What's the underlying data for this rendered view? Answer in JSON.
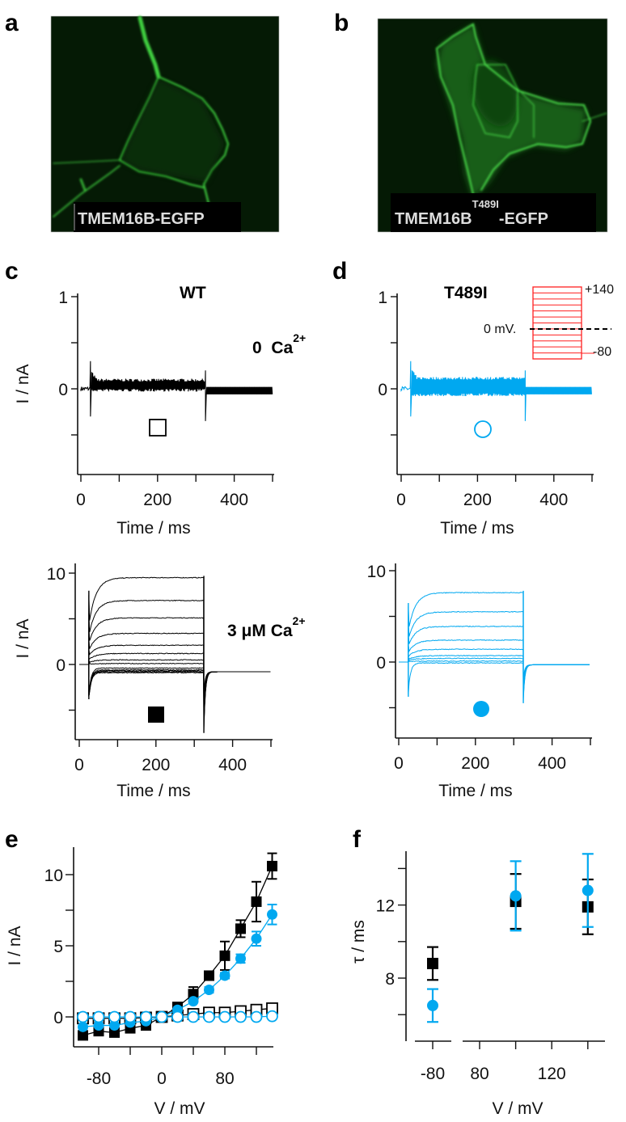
{
  "panel_letters": {
    "a": "a",
    "b": "b",
    "c": "c",
    "d": "d",
    "e": "e",
    "f": "f"
  },
  "images": {
    "a": {
      "label": "TMEM16B-EGFP"
    },
    "b": {
      "label_main": "TMEM16B",
      "label_sup": "T489I",
      "label_tail": "-EGFP"
    }
  },
  "titles": {
    "wt": "WT",
    "mut": "T489I"
  },
  "conditions": {
    "zero_ca": {
      "main": "0  Ca",
      "sup": "2+"
    },
    "three_um_ca": {
      "main": "3 μM Ca",
      "sup": "2+"
    }
  },
  "inset": {
    "top": "+140",
    "zero": "0 mV.",
    "bottom": "-80",
    "color": "#ff2020"
  },
  "colors": {
    "wt": "#000000",
    "mut": "#00a8f0"
  },
  "chart_data": [
    {
      "id": "c_top",
      "type": "line",
      "title": "WT 0 Ca2+",
      "xlabel": "Time / ms",
      "ylabel": "I / nA",
      "xlim": [
        0,
        500
      ],
      "ylim": [
        -1,
        1
      ],
      "xticks": [
        0,
        100,
        200,
        300,
        400,
        500
      ],
      "xtick_labels": [
        "0",
        "",
        "200",
        "",
        "400",
        ""
      ],
      "yticks": [
        1,
        0.5,
        0,
        -0.5
      ],
      "ytick_labels": [
        "1",
        "",
        "0",
        ""
      ],
      "pulse_ms": [
        25,
        325
      ],
      "steady_levels": [
        0.08,
        0.0
      ],
      "marker": "open-square"
    },
    {
      "id": "d_top",
      "type": "line",
      "title": "T489I 0 Ca2+",
      "xlabel": "Time / ms",
      "ylabel": "",
      "xlim": [
        0,
        500
      ],
      "ylim": [
        -1,
        1
      ],
      "xticks": [
        0,
        100,
        200,
        300,
        400,
        500
      ],
      "xtick_labels": [
        "0",
        "",
        "200",
        "",
        "400",
        ""
      ],
      "yticks": [
        1,
        0.5,
        0,
        -0.5
      ],
      "ytick_labels": [
        "1",
        "",
        "0",
        ""
      ],
      "pulse_ms": [
        25,
        325
      ],
      "steady_levels": [
        0.1,
        -0.05
      ],
      "marker": "open-circle"
    },
    {
      "id": "c_bot",
      "type": "line",
      "title": "WT 3 μM Ca2+",
      "xlabel": "Time / ms",
      "ylabel": "I / nA",
      "xlim": [
        0,
        500
      ],
      "ylim": [
        -8,
        12
      ],
      "xticks": [
        0,
        100,
        200,
        300,
        400,
        500
      ],
      "xtick_labels": [
        "0",
        "",
        "200",
        "",
        "400",
        ""
      ],
      "yticks": [
        10,
        5,
        0,
        -5
      ],
      "ytick_labels": [
        "10",
        "",
        "0",
        ""
      ],
      "pulse_ms": [
        25,
        325
      ],
      "steady_levels": [
        9.5,
        7.0,
        5.1,
        3.4,
        2.1,
        1.2,
        0.5,
        0.1,
        -0.4,
        -0.6,
        -0.7,
        -0.8,
        -0.9
      ],
      "tail_nA": -7.5,
      "holding_nA": -0.8,
      "marker": "filled-square"
    },
    {
      "id": "d_bot",
      "type": "line",
      "title": "T489I 3 μM Ca2+",
      "xlabel": "Time / ms",
      "ylabel": "",
      "xlim": [
        0,
        500
      ],
      "ylim": [
        -8,
        12
      ],
      "xticks": [
        0,
        100,
        200,
        300,
        400,
        500
      ],
      "xtick_labels": [
        "0",
        "",
        "200",
        "",
        "400",
        ""
      ],
      "yticks": [
        10,
        5,
        0,
        -5
      ],
      "ytick_labels": [
        "10",
        "",
        "0",
        ""
      ],
      "pulse_ms": [
        25,
        325
      ],
      "steady_levels": [
        7.6,
        5.5,
        3.9,
        2.4,
        1.4,
        0.7,
        0.4,
        0.1,
        -0.1
      ],
      "tail_nA": -4.5,
      "holding_nA": -0.3,
      "marker": "filled-circle"
    },
    {
      "id": "e",
      "type": "scatter",
      "xlabel": "V / mV",
      "ylabel": "I / nA",
      "xlim": [
        -100,
        140
      ],
      "ylim": [
        -2,
        12
      ],
      "xticks": [
        -80,
        -40,
        0,
        40,
        80,
        120
      ],
      "xtick_labels": [
        "-80",
        "",
        "0",
        "",
        "80",
        ""
      ],
      "yticks": [
        10,
        7.5,
        5,
        2.5,
        0
      ],
      "ytick_labels": [
        "10",
        "",
        "5",
        "",
        "0"
      ],
      "x": [
        -100,
        -80,
        -60,
        -40,
        -20,
        0,
        20,
        40,
        60,
        80,
        100,
        120,
        140
      ],
      "series": [
        {
          "name": "WT 0 Ca2+",
          "marker": "open-square",
          "color": "#000000",
          "values": [
            -0.1,
            -0.1,
            -0.1,
            -0.1,
            -0.05,
            0,
            0.1,
            0.2,
            0.3,
            0.3,
            0.4,
            0.5,
            0.6
          ],
          "errors": [
            0.1,
            0.1,
            0.1,
            0.1,
            0.1,
            0.1,
            0.1,
            0.1,
            0.1,
            0.1,
            0.1,
            0.1,
            0.1
          ]
        },
        {
          "name": "WT 3 μM Ca2+",
          "marker": "filled-square",
          "color": "#000000",
          "values": [
            -1.3,
            -1.0,
            -1.1,
            -0.8,
            -0.6,
            0,
            0.7,
            1.6,
            2.9,
            4.3,
            6.2,
            8.1,
            10.6
          ],
          "errors": [
            0.2,
            0.1,
            0.1,
            0.1,
            0.1,
            0.1,
            0.1,
            0.5,
            0.2,
            1.0,
            0.6,
            1.4,
            0.9
          ]
        },
        {
          "name": "T489I 3 μM Ca2+",
          "marker": "filled-circle",
          "color": "#00a8f0",
          "values": [
            -0.7,
            -0.6,
            -0.6,
            -0.4,
            -0.3,
            0,
            0.5,
            1.1,
            1.9,
            2.9,
            4.1,
            5.5,
            7.2
          ],
          "errors": [
            0.1,
            0.1,
            0.1,
            0.1,
            0.1,
            0.1,
            0.1,
            0.1,
            0.2,
            0.2,
            0.3,
            0.5,
            0.7
          ]
        },
        {
          "name": "T489I 0 Ca2+",
          "marker": "open-circle",
          "color": "#00a8f0",
          "values": [
            0,
            0,
            0,
            0,
            0,
            0,
            0,
            0,
            0,
            0,
            0,
            0,
            0.05
          ],
          "errors": [
            0.05,
            0.05,
            0.05,
            0.05,
            0.05,
            0.05,
            0.05,
            0.05,
            0.05,
            0.05,
            0.05,
            0.05,
            0.05
          ]
        }
      ]
    },
    {
      "id": "f",
      "type": "scatter",
      "xlabel": "V / mV",
      "ylabel": "τ / ms",
      "xlim": [
        -80,
        140
      ],
      "ylim": [
        5,
        15
      ],
      "xticks": [
        -80,
        80,
        100,
        120,
        140
      ],
      "xtick_labels": [
        "-80",
        "80",
        "",
        "120",
        ""
      ],
      "yticks": [
        14,
        12,
        10,
        8,
        6
      ],
      "ytick_labels": [
        "",
        "12",
        "",
        "8",
        ""
      ],
      "x": [
        -80,
        100,
        140
      ],
      "series": [
        {
          "name": "WT",
          "marker": "filled-square",
          "color": "#000000",
          "values": [
            8.8,
            12.2,
            11.9
          ],
          "errors": [
            0.9,
            1.5,
            1.5
          ]
        },
        {
          "name": "T489I",
          "marker": "filled-circle",
          "color": "#00a8f0",
          "values": [
            6.5,
            12.5,
            12.8
          ],
          "errors": [
            0.9,
            1.9,
            2.0
          ]
        }
      ]
    }
  ]
}
